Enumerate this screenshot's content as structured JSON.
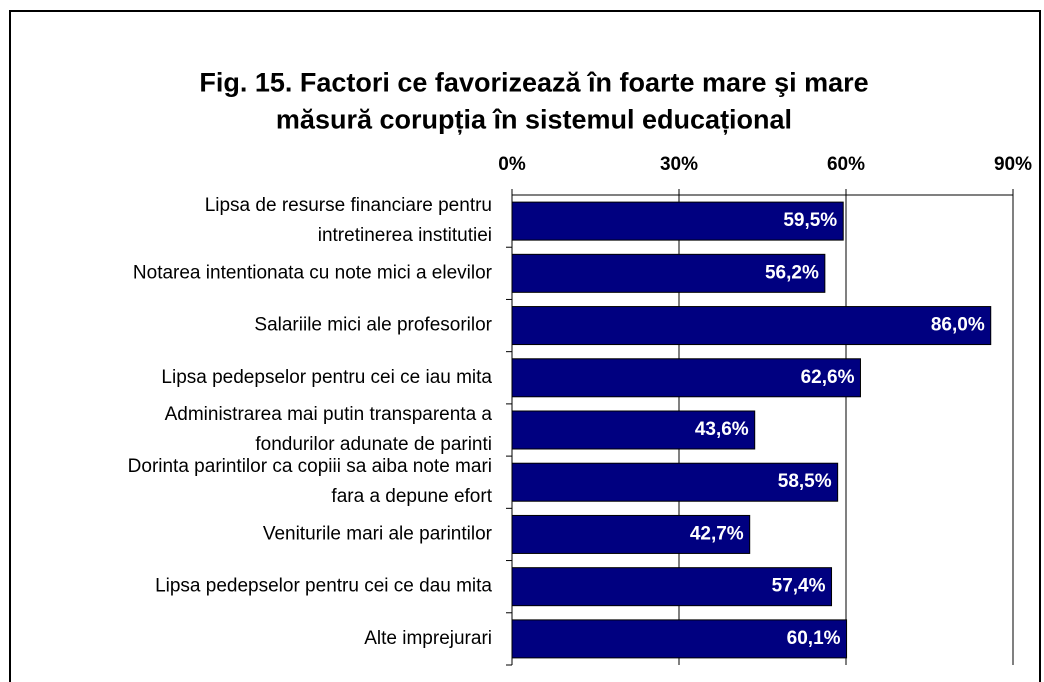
{
  "chart_data": {
    "type": "bar",
    "orientation": "horizontal",
    "title": "Fig. 15. Factori ce favorizează în foarte mare şi mare\nmăsură corupția în sistemul educațional",
    "categories": [
      "Lipsa de resurse financiare pentru\nintretinerea institutiei",
      "Notarea intentionata cu note mici a elevilor",
      "Salariile mici ale profesorilor",
      "Lipsa pedepselor pentru cei ce iau mita",
      "Administrarea mai putin transparenta a\nfondurilor adunate de parinti",
      "Dorinta parintilor ca copiii sa aiba note mari\nfara a depune efort",
      "Veniturile mari ale parintilor",
      "Lipsa pedepselor pentru cei ce dau mita",
      "Alte imprejurari"
    ],
    "values": [
      59.5,
      56.2,
      86.0,
      62.6,
      43.6,
      58.5,
      42.7,
      57.4,
      60.1
    ],
    "value_labels": [
      "59,5%",
      "56,2%",
      "86,0%",
      "62,6%",
      "43,6%",
      "58,5%",
      "42,7%",
      "57,4%",
      "60,1%"
    ],
    "color": "#000080",
    "xlim": [
      0,
      90
    ],
    "xticks": [
      {
        "value": 0,
        "label": "0%"
      },
      {
        "value": 30,
        "label": "30%"
      },
      {
        "value": 60,
        "label": "60%"
      },
      {
        "value": 90,
        "label": "90%"
      }
    ],
    "grid": true
  }
}
